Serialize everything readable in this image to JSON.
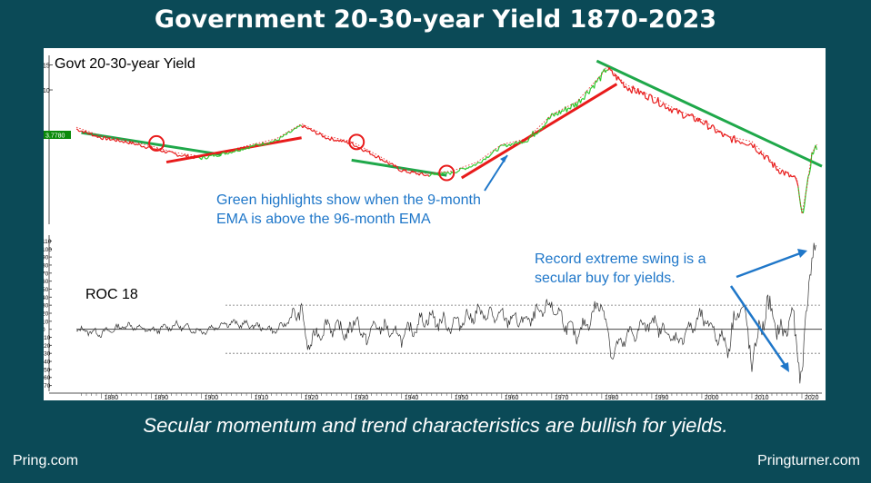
{
  "title": "Government 20-30-year Yield 1870-2023",
  "caption": "Secular momentum and trend characteristics are bullish for yields.",
  "footer_left": "Pring.com",
  "footer_right": "Pringturner.com",
  "colors": {
    "background": "#0b4a57",
    "rising": "#2ec92e",
    "falling": "#e81b1b",
    "trendline_green": "#1fa84a",
    "trendline_red": "#e81b1b",
    "annotation": "#1f77c9",
    "roc": "#333333"
  },
  "chart_data": [
    {
      "type": "line",
      "title": "Govt 20-30-year Yield",
      "scale": "log",
      "current_value_label": "3.7780",
      "y_ticks": [
        5,
        10,
        15
      ],
      "xlim": [
        1875,
        2024
      ],
      "x_ticks": [
        1880,
        1890,
        1900,
        1910,
        1920,
        1930,
        1940,
        1950,
        1960,
        1970,
        1980,
        1990,
        2000,
        2010,
        2020
      ],
      "series_points": [
        [
          1875,
          5.3
        ],
        [
          1880,
          4.6
        ],
        [
          1885,
          4.3
        ],
        [
          1890,
          3.9
        ],
        [
          1895,
          3.5
        ],
        [
          1900,
          3.3
        ],
        [
          1905,
          3.6
        ],
        [
          1910,
          4.0
        ],
        [
          1915,
          4.4
        ],
        [
          1920,
          5.6
        ],
        [
          1925,
          4.6
        ],
        [
          1930,
          4.2
        ],
        [
          1935,
          3.4
        ],
        [
          1940,
          2.7
        ],
        [
          1945,
          2.5
        ],
        [
          1950,
          2.6
        ],
        [
          1955,
          3.0
        ],
        [
          1960,
          4.0
        ],
        [
          1965,
          4.4
        ],
        [
          1970,
          6.5
        ],
        [
          1975,
          8.0
        ],
        [
          1980,
          12.5
        ],
        [
          1981,
          14.2
        ],
        [
          1985,
          10.5
        ],
        [
          1990,
          8.8
        ],
        [
          1995,
          7.0
        ],
        [
          2000,
          6.0
        ],
        [
          2005,
          4.6
        ],
        [
          2010,
          4.2
        ],
        [
          2015,
          2.8
        ],
        [
          2019,
          2.3
        ],
        [
          2020,
          1.3
        ],
        [
          2021,
          2.0
        ],
        [
          2022,
          3.5
        ],
        [
          2023,
          4.0
        ]
      ],
      "trendlines": [
        {
          "color": "green",
          "from": [
            1876,
            5.0
          ],
          "to": [
            1904,
            3.5
          ]
        },
        {
          "color": "red",
          "from": [
            1893,
            3.1
          ],
          "to": [
            1920,
            4.6
          ]
        },
        {
          "color": "green",
          "from": [
            1930,
            3.2
          ],
          "to": [
            1949,
            2.5
          ]
        },
        {
          "color": "red",
          "from": [
            1952,
            2.4
          ],
          "to": [
            1983,
            11.0
          ]
        },
        {
          "color": "green",
          "from": [
            1979,
            16.0
          ],
          "to": [
            2024,
            2.9
          ]
        }
      ],
      "highlight_circles": [
        [
          1891,
          4.2
        ],
        [
          1931,
          4.3
        ],
        [
          1949,
          2.6
        ]
      ],
      "annotation": [
        "Green highlights show when  the 9-month",
        "EMA is above the 96-month EMA"
      ]
    },
    {
      "type": "line",
      "title": "ROC 18",
      "y_ticks": [
        110,
        100,
        90,
        80,
        70,
        60,
        50,
        40,
        30,
        20,
        10,
        0,
        -10,
        -20,
        -30,
        -40,
        -50,
        -60,
        -70
      ],
      "ylim": [
        -75,
        115
      ],
      "reference_lines": [
        30,
        0,
        -30
      ],
      "series_points": [
        [
          1875,
          0
        ],
        [
          1880,
          -5
        ],
        [
          1885,
          5
        ],
        [
          1890,
          -2
        ],
        [
          1895,
          5
        ],
        [
          1900,
          -3
        ],
        [
          1905,
          8
        ],
        [
          1910,
          5
        ],
        [
          1915,
          -2
        ],
        [
          1920,
          25
        ],
        [
          1921,
          -20
        ],
        [
          1925,
          5
        ],
        [
          1930,
          -5
        ],
        [
          1931,
          25
        ],
        [
          1932,
          -15
        ],
        [
          1935,
          5
        ],
        [
          1940,
          -10
        ],
        [
          1945,
          15
        ],
        [
          1950,
          5
        ],
        [
          1955,
          20
        ],
        [
          1960,
          15
        ],
        [
          1965,
          10
        ],
        [
          1970,
          30
        ],
        [
          1975,
          -10
        ],
        [
          1980,
          35
        ],
        [
          1982,
          -30
        ],
        [
          1985,
          -10
        ],
        [
          1990,
          10
        ],
        [
          1995,
          -15
        ],
        [
          2000,
          15
        ],
        [
          2005,
          -20
        ],
        [
          2008,
          35
        ],
        [
          2010,
          -40
        ],
        [
          2013,
          30
        ],
        [
          2016,
          -10
        ],
        [
          2018,
          20
        ],
        [
          2020,
          -65
        ],
        [
          2021,
          30
        ],
        [
          2022,
          100
        ],
        [
          2023,
          90
        ]
      ],
      "annotation": [
        "Record extreme swing is a",
        "secular buy for yields."
      ]
    }
  ]
}
